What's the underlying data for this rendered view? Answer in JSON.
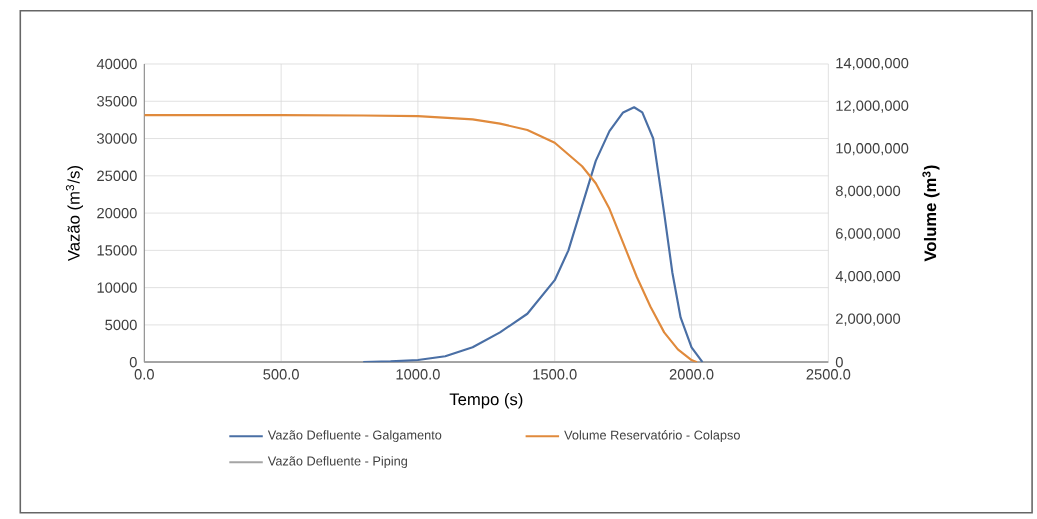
{
  "chart_data": {
    "type": "line",
    "xlabel": "Tempo (s)",
    "ylabel": "Vazão (m$^{3}$/s)",
    "y2label": "Volume (m$^{3}$)",
    "xlim": [
      0,
      2500
    ],
    "xticks": [
      {
        "value": 0,
        "label": "0.0"
      },
      {
        "value": 500,
        "label": "500.0"
      },
      {
        "value": 1000,
        "label": "1000.0"
      },
      {
        "value": 1500,
        "label": "1500.0"
      },
      {
        "value": 2000,
        "label": "2000.0"
      },
      {
        "value": 2500,
        "label": "2500.0"
      }
    ],
    "ylim": [
      0,
      40000
    ],
    "yticks": [
      0,
      5000,
      10000,
      15000,
      20000,
      25000,
      30000,
      35000,
      40000
    ],
    "y2lim": [
      0,
      14000000
    ],
    "y2ticks": [
      {
        "value": 0,
        "label": "0"
      },
      {
        "value": 2000000,
        "label": "2,000,000"
      },
      {
        "value": 4000000,
        "label": "4,000,000"
      },
      {
        "value": 6000000,
        "label": "6,000,000"
      },
      {
        "value": 8000000,
        "label": "8,000,000"
      },
      {
        "value": 10000000,
        "label": "10,000,000"
      },
      {
        "value": 12000000,
        "label": "12,000,000"
      },
      {
        "value": 14000000,
        "label": "14,000,000"
      }
    ],
    "grid": true,
    "legend": "bottom",
    "line_style": "solid",
    "series": [
      {
        "name": "Vazão Defluente - Galgamento",
        "color": "#4a6fa5",
        "x": [
          800,
          900,
          1000,
          1100,
          1200,
          1300,
          1400,
          1500,
          1550,
          1600,
          1650,
          1700,
          1750,
          1790,
          1820,
          1860,
          1900,
          1930,
          1960,
          2000,
          2040
        ],
        "values": [
          0,
          100,
          300,
          800,
          2000,
          4000,
          6500,
          11000,
          15000,
          21000,
          27000,
          31000,
          33500,
          34200,
          33500,
          30000,
          20000,
          12000,
          6000,
          2000,
          0
        ]
      },
      {
        "name": "Volume Reservatório - Colapso",
        "color": "#e08a3c",
        "axis": "y2",
        "x": [
          0,
          500,
          800,
          1000,
          1200,
          1300,
          1400,
          1500,
          1600,
          1650,
          1700,
          1750,
          1800,
          1850,
          1900,
          1950,
          2000,
          2020
        ],
        "values": [
          11600000,
          11600000,
          11580000,
          11550000,
          11400000,
          11200000,
          10900000,
          10300000,
          9200000,
          8400000,
          7200000,
          5600000,
          4000000,
          2600000,
          1400000,
          600000,
          100000,
          0
        ]
      },
      {
        "name": "Vazão Defluente - Piping",
        "color": "#a5a5a5",
        "x": [
          0,
          2500
        ],
        "values": [
          0,
          0
        ]
      }
    ]
  }
}
